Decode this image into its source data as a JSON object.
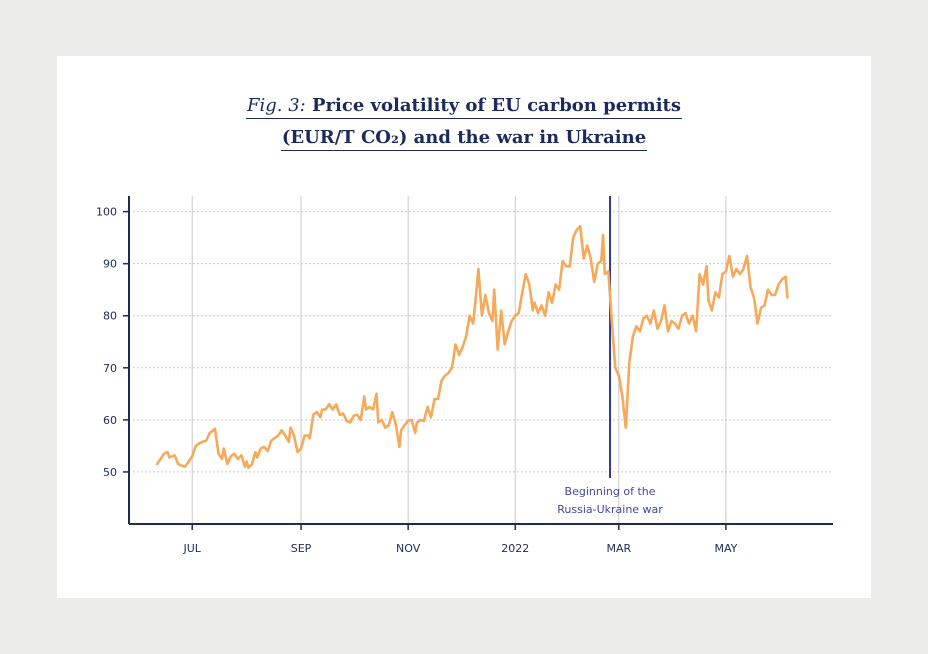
{
  "title": {
    "fig_label": "Fig. 3:",
    "line1": "Price volatility of EU carbon permits",
    "line2": "(EUR/T CO₂) and the war in Ukraine"
  },
  "colors": {
    "line": "#f6a95a",
    "axis": "#1d2a5c",
    "event": "#2e3a8c",
    "grid": "#c9c9c9",
    "annotation": "#3f4a9e"
  },
  "chart_data": {
    "type": "line",
    "title": "Price volatility of EU carbon permits (EUR/T CO₂) and the war in Ukraine",
    "xlabel": "",
    "ylabel": "",
    "ylim": [
      40,
      103
    ],
    "yticks": [
      50,
      60,
      70,
      80,
      90,
      100
    ],
    "xlim": [
      "2021-05-26",
      "2022-07-01"
    ],
    "xticks": [
      {
        "label": "JUL",
        "date": "2021-07-01"
      },
      {
        "label": "SEP",
        "date": "2021-09-01"
      },
      {
        "label": "NOV",
        "date": "2021-11-01"
      },
      {
        "label": "2022",
        "date": "2022-01-01"
      },
      {
        "label": "MAR",
        "date": "2022-03-01"
      },
      {
        "label": "MAY",
        "date": "2022-05-01"
      }
    ],
    "grid": "vertical at month ticks, dotted horizontal at y ticks",
    "series": [
      {
        "values": [
          [
            "2021-06-11",
            51.5
          ],
          [
            "2021-06-13",
            52.5
          ],
          [
            "2021-06-15",
            53.5
          ],
          [
            "2021-06-17",
            53.8
          ],
          [
            "2021-06-18",
            52.8
          ],
          [
            "2021-06-21",
            53.2
          ],
          [
            "2021-06-23",
            51.5
          ],
          [
            "2021-06-25",
            51.2
          ],
          [
            "2021-06-27",
            51.0
          ],
          [
            "2021-06-29",
            52.0
          ],
          [
            "2021-07-01",
            53.0
          ],
          [
            "2021-07-03",
            55.0
          ],
          [
            "2021-07-05",
            55.5
          ],
          [
            "2021-07-07",
            55.8
          ],
          [
            "2021-07-09",
            56.0
          ],
          [
            "2021-07-11",
            57.5
          ],
          [
            "2021-07-13",
            58.0
          ],
          [
            "2021-07-14",
            58.3
          ],
          [
            "2021-07-16",
            53.5
          ],
          [
            "2021-07-18",
            52.5
          ],
          [
            "2021-07-19",
            54.5
          ],
          [
            "2021-07-21",
            51.5
          ],
          [
            "2021-07-23",
            53.0
          ],
          [
            "2021-07-25",
            53.5
          ],
          [
            "2021-07-27",
            52.5
          ],
          [
            "2021-07-29",
            53.2
          ],
          [
            "2021-07-31",
            51.0
          ],
          [
            "2021-08-01",
            52.0
          ],
          [
            "2021-08-02",
            50.8
          ],
          [
            "2021-08-04",
            51.5
          ],
          [
            "2021-08-06",
            53.8
          ],
          [
            "2021-08-07",
            52.8
          ],
          [
            "2021-08-09",
            54.5
          ],
          [
            "2021-08-11",
            54.8
          ],
          [
            "2021-08-13",
            54.0
          ],
          [
            "2021-08-15",
            56.0
          ],
          [
            "2021-08-17",
            56.5
          ],
          [
            "2021-08-19",
            57.0
          ],
          [
            "2021-08-21",
            58.0
          ],
          [
            "2021-08-23",
            57.0
          ],
          [
            "2021-08-25",
            55.8
          ],
          [
            "2021-08-26",
            58.5
          ],
          [
            "2021-08-28",
            57.0
          ],
          [
            "2021-08-30",
            53.8
          ],
          [
            "2021-09-01",
            54.5
          ],
          [
            "2021-09-03",
            57.0
          ],
          [
            "2021-09-05",
            57.0
          ],
          [
            "2021-09-06",
            56.5
          ],
          [
            "2021-09-08",
            61.0
          ],
          [
            "2021-09-10",
            61.5
          ],
          [
            "2021-09-12",
            60.5
          ],
          [
            "2021-09-13",
            62.0
          ],
          [
            "2021-09-15",
            62.0
          ],
          [
            "2021-09-17",
            63.0
          ],
          [
            "2021-09-19",
            62.0
          ],
          [
            "2021-09-21",
            63.0
          ],
          [
            "2021-09-23",
            61.0
          ],
          [
            "2021-09-25",
            61.2
          ],
          [
            "2021-09-27",
            59.8
          ],
          [
            "2021-09-29",
            59.5
          ],
          [
            "2021-10-01",
            60.8
          ],
          [
            "2021-10-03",
            61.0
          ],
          [
            "2021-10-05",
            60.0
          ],
          [
            "2021-10-07",
            64.5
          ],
          [
            "2021-10-08",
            62.0
          ],
          [
            "2021-10-10",
            62.5
          ],
          [
            "2021-10-12",
            62.0
          ],
          [
            "2021-10-14",
            65.0
          ],
          [
            "2021-10-15",
            59.5
          ],
          [
            "2021-10-17",
            60.0
          ],
          [
            "2021-10-19",
            58.5
          ],
          [
            "2021-10-21",
            59.0
          ],
          [
            "2021-10-23",
            61.5
          ],
          [
            "2021-10-25",
            59.0
          ],
          [
            "2021-10-27",
            54.8
          ],
          [
            "2021-10-28",
            58.0
          ],
          [
            "2021-10-30",
            59.0
          ],
          [
            "2021-11-01",
            59.8
          ],
          [
            "2021-11-03",
            60.0
          ],
          [
            "2021-11-05",
            57.5
          ],
          [
            "2021-11-06",
            59.5
          ],
          [
            "2021-11-08",
            60.0
          ],
          [
            "2021-11-10",
            59.8
          ],
          [
            "2021-11-12",
            62.5
          ],
          [
            "2021-11-14",
            60.5
          ],
          [
            "2021-11-16",
            64.0
          ],
          [
            "2021-11-18",
            64.0
          ],
          [
            "2021-11-20",
            67.5
          ],
          [
            "2021-11-22",
            68.5
          ],
          [
            "2021-11-24",
            69.0
          ],
          [
            "2021-11-26",
            70.0
          ],
          [
            "2021-11-28",
            74.5
          ],
          [
            "2021-11-30",
            72.5
          ],
          [
            "2021-12-02",
            74.0
          ],
          [
            "2021-12-04",
            76.0
          ],
          [
            "2021-12-06",
            80.0
          ],
          [
            "2021-12-08",
            78.5
          ],
          [
            "2021-12-10",
            85.0
          ],
          [
            "2021-12-11",
            89.0
          ],
          [
            "2021-12-13",
            80.0
          ],
          [
            "2021-12-15",
            84.0
          ],
          [
            "2021-12-17",
            80.5
          ],
          [
            "2021-12-19",
            79.0
          ],
          [
            "2021-12-20",
            85.0
          ],
          [
            "2021-12-22",
            73.5
          ],
          [
            "2021-12-24",
            81.0
          ],
          [
            "2021-12-26",
            74.5
          ],
          [
            "2021-12-28",
            77.0
          ],
          [
            "2021-12-30",
            79.0
          ],
          [
            "2022-01-01",
            80.0
          ],
          [
            "2022-01-03",
            80.5
          ],
          [
            "2022-01-05",
            84.5
          ],
          [
            "2022-01-07",
            88.0
          ],
          [
            "2022-01-09",
            86.0
          ],
          [
            "2022-01-11",
            81.0
          ],
          [
            "2022-01-12",
            82.5
          ],
          [
            "2022-01-14",
            80.5
          ],
          [
            "2022-01-16",
            82.0
          ],
          [
            "2022-01-18",
            80.0
          ],
          [
            "2022-01-20",
            84.5
          ],
          [
            "2022-01-22",
            82.5
          ],
          [
            "2022-01-24",
            86.0
          ],
          [
            "2022-01-26",
            85.0
          ],
          [
            "2022-01-28",
            90.5
          ],
          [
            "2022-01-30",
            89.5
          ],
          [
            "2022-02-01",
            89.5
          ],
          [
            "2022-02-03",
            95.0
          ],
          [
            "2022-02-05",
            96.5
          ],
          [
            "2022-02-07",
            97.2
          ],
          [
            "2022-02-09",
            91.0
          ],
          [
            "2022-02-11",
            93.5
          ],
          [
            "2022-02-13",
            91.0
          ],
          [
            "2022-02-15",
            86.5
          ],
          [
            "2022-02-17",
            90.0
          ],
          [
            "2022-02-19",
            90.5
          ],
          [
            "2022-02-20",
            95.5
          ],
          [
            "2022-02-21",
            88.0
          ],
          [
            "2022-02-23",
            88.5
          ],
          [
            "2022-02-25",
            79.0
          ],
          [
            "2022-02-27",
            70.0
          ],
          [
            "2022-03-01",
            68.5
          ],
          [
            "2022-03-03",
            64.5
          ],
          [
            "2022-03-05",
            58.5
          ],
          [
            "2022-03-07",
            71.0
          ],
          [
            "2022-03-09",
            76.0
          ],
          [
            "2022-03-11",
            78.0
          ],
          [
            "2022-03-13",
            77.0
          ],
          [
            "2022-03-15",
            79.5
          ],
          [
            "2022-03-17",
            80.0
          ],
          [
            "2022-03-19",
            78.5
          ],
          [
            "2022-03-21",
            81.0
          ],
          [
            "2022-03-23",
            77.5
          ],
          [
            "2022-03-25",
            79.0
          ],
          [
            "2022-03-27",
            82.0
          ],
          [
            "2022-03-29",
            77.0
          ],
          [
            "2022-03-31",
            79.0
          ],
          [
            "2022-04-02",
            78.5
          ],
          [
            "2022-04-04",
            77.5
          ],
          [
            "2022-04-06",
            80.0
          ],
          [
            "2022-04-08",
            80.5
          ],
          [
            "2022-04-10",
            78.5
          ],
          [
            "2022-04-12",
            80.0
          ],
          [
            "2022-04-14",
            77.0
          ],
          [
            "2022-04-16",
            88.0
          ],
          [
            "2022-04-18",
            86.0
          ],
          [
            "2022-04-20",
            89.5
          ],
          [
            "2022-04-21",
            83.0
          ],
          [
            "2022-04-23",
            81.0
          ],
          [
            "2022-04-25",
            84.5
          ],
          [
            "2022-04-27",
            83.5
          ],
          [
            "2022-04-29",
            88.0
          ],
          [
            "2022-05-01",
            88.5
          ],
          [
            "2022-05-03",
            91.5
          ],
          [
            "2022-05-05",
            87.5
          ],
          [
            "2022-05-07",
            89.0
          ],
          [
            "2022-05-09",
            88.0
          ],
          [
            "2022-05-11",
            89.0
          ],
          [
            "2022-05-13",
            91.5
          ],
          [
            "2022-05-15",
            85.5
          ],
          [
            "2022-05-17",
            83.5
          ],
          [
            "2022-05-19",
            78.5
          ],
          [
            "2022-05-21",
            81.5
          ],
          [
            "2022-05-23",
            82.0
          ],
          [
            "2022-05-25",
            85.0
          ],
          [
            "2022-05-27",
            84.0
          ],
          [
            "2022-05-29",
            84.0
          ],
          [
            "2022-05-31",
            86.0
          ],
          [
            "2022-06-02",
            87.0
          ],
          [
            "2022-06-04",
            87.5
          ],
          [
            "2022-06-05",
            83.5
          ]
        ]
      }
    ],
    "event": {
      "date": "2022-02-24",
      "label_line1": "Beginning of the",
      "label_line2": "Russia-Ukraine war"
    }
  }
}
